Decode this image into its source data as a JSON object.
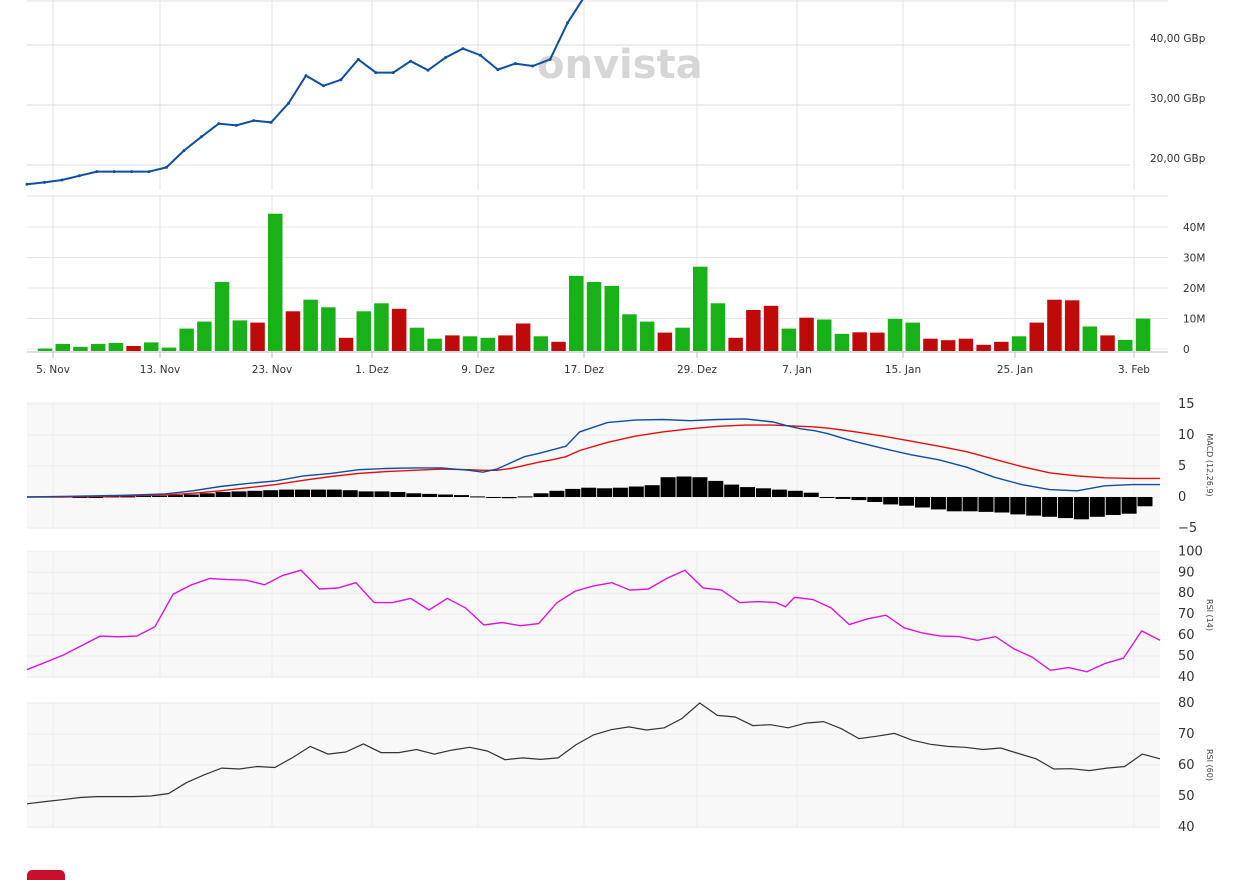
{
  "watermark": "onvista",
  "colors": {
    "price": "#0d4f9e",
    "vol_up": "#18b218",
    "vol_down": "#bf0a0a",
    "macd": "#0d4f9e",
    "signal": "#e20e0e",
    "hist": "#000000",
    "rsi14": "#dd13dd",
    "rsi50": "#333333",
    "grid": "#e3e3e3",
    "panel_bg": "#f8f8f8",
    "footer_badge": "#c8102e"
  },
  "chart_data": [
    {
      "type": "line",
      "name": "price",
      "yticks": [
        "20,00 GBp",
        "30,00 GBp",
        "40,00 GBp"
      ],
      "ylim": [
        16.4,
        46.1
      ],
      "values": [
        16.8,
        17.1,
        17.5,
        18.2,
        18.9,
        18.9,
        18.9,
        18.9,
        19.6,
        22.4,
        24.7,
        26.9,
        26.6,
        27.4,
        27.1,
        30.3,
        34.9,
        33.2,
        34.2,
        37.6,
        35.4,
        35.4,
        37.3,
        35.8,
        37.9,
        39.4,
        38.3,
        35.9,
        36.9,
        36.5,
        37.6,
        43.7,
        48.2
      ]
    },
    {
      "type": "bar",
      "name": "volume",
      "yticks": [
        "0",
        "10M",
        "20M",
        "30M",
        "40M"
      ],
      "ylim": [
        0,
        47
      ],
      "values": [
        0.5,
        2,
        1,
        2,
        2.3,
        1.3,
        2.5,
        0.8,
        7,
        9.3,
        22.3,
        9.7,
        9,
        44.7,
        12.7,
        16.5,
        14,
        4,
        12.7,
        15.3,
        13.5,
        7.3,
        3.7,
        4.8,
        4.5,
        4,
        4.8,
        8.7,
        4.5,
        2.7,
        24.3,
        22.3,
        21,
        11.7,
        9.3,
        5.7,
        7.3,
        27.3,
        15.3,
        4,
        13.1,
        14.5,
        7,
        10.6,
        10,
        5.3,
        5.8,
        5.7,
        10.2,
        9,
        3.7,
        3.2,
        3.7,
        1.7,
        2.7,
        4.5,
        9,
        16.5,
        16.3,
        7.7,
        4.8,
        3.3,
        10.3
      ],
      "up": [
        true,
        true,
        true,
        true,
        true,
        false,
        true,
        true,
        true,
        true,
        true,
        true,
        false,
        true,
        false,
        true,
        true,
        false,
        true,
        true,
        false,
        true,
        true,
        false,
        true,
        true,
        false,
        false,
        true,
        false,
        true,
        true,
        true,
        true,
        true,
        false,
        true,
        true,
        true,
        false,
        false,
        false,
        true,
        false,
        true,
        true,
        false,
        false,
        true,
        true,
        false,
        false,
        false,
        false,
        false,
        true,
        false,
        false,
        false,
        true,
        false,
        true,
        true
      ]
    },
    {
      "type": "line",
      "name": "MACD (12,26,9)",
      "yticks": [
        "−5",
        "0",
        "5",
        "10",
        "15"
      ],
      "ylim": [
        -5,
        15
      ],
      "x_labels": [
        "5. Nov",
        "13. Nov",
        "23. Nov",
        "1. Dez",
        "9. Dez",
        "17. Dez",
        "29. Dez",
        "7. Jan",
        "15. Jan",
        "25. Jan",
        "3. Feb"
      ],
      "macd_x": [
        0,
        5,
        10,
        15,
        20,
        24,
        28,
        32,
        36,
        40,
        44,
        48,
        52,
        56,
        60,
        64,
        66,
        68,
        70,
        72,
        74,
        76,
        78,
        80,
        84,
        88,
        92,
        96,
        100,
        104,
        108,
        110,
        112,
        114,
        116,
        118,
        120,
        124,
        128,
        132,
        136,
        140,
        144,
        148,
        152,
        156,
        160,
        164
      ],
      "macd": [
        0,
        0.1,
        0.2,
        0.3,
        0.5,
        1,
        1.7,
        2.2,
        2.6,
        3.4,
        3.8,
        4.4,
        4.6,
        4.7,
        4.7,
        4.3,
        4,
        4.5,
        5.5,
        6.5,
        7,
        7.6,
        8.2,
        10.5,
        12,
        12.4,
        12.5,
        12.3,
        12.5,
        12.6,
        12.1,
        11.5,
        11,
        10.7,
        10.2,
        9.5,
        8.9,
        7.8,
        6.8,
        6,
        4.8,
        3.2,
        2,
        1.2,
        1,
        1.8,
        2,
        2
      ],
      "signal": [
        0,
        0,
        0.1,
        0.2,
        0.3,
        0.6,
        1,
        1.5,
        2,
        2.7,
        3.3,
        3.8,
        4.1,
        4.3,
        4.5,
        4.4,
        4.3,
        4.3,
        4.6,
        5.1,
        5.6,
        6,
        6.5,
        7.5,
        8.8,
        9.8,
        10.5,
        11,
        11.4,
        11.6,
        11.6,
        11.5,
        11.4,
        11.3,
        11.1,
        10.8,
        10.5,
        9.8,
        9,
        8.2,
        7.3,
        6.1,
        4.9,
        3.9,
        3.4,
        3.1,
        3,
        3
      ],
      "hist": [
        0,
        0,
        0.1,
        0.1,
        0.2,
        0.2,
        0.3,
        0.4,
        0.6,
        0.8,
        0.9,
        1,
        1.1,
        1.2,
        1.2,
        1.2,
        1.2,
        1.1,
        0.9,
        0.9,
        0.8,
        0.6,
        0.5,
        0.4,
        0.3,
        0.1,
        0,
        -0.2,
        0.1,
        0.6,
        1,
        1.3,
        1.5,
        1.4,
        1.5,
        1.7,
        1.9,
        3.2,
        3.3,
        3.2,
        2.6,
        2,
        1.6,
        1.4,
        1.2,
        1,
        0.7,
        0,
        -0.3,
        -0.5,
        -0.8,
        -1.2,
        -1.4,
        -1.7,
        -2,
        -2.3,
        -2.3,
        -2.4,
        -2.5,
        -2.8,
        -3,
        -3.2,
        -3.4,
        -3.6,
        -3.2,
        -2.9,
        -2.7,
        -1.5
      ]
    },
    {
      "type": "line",
      "name": "RSI (14)",
      "yticks": [
        "40",
        "50",
        "60",
        "70",
        "80",
        "90",
        "100"
      ],
      "ylim": [
        40,
        100
      ],
      "values": [
        43.5,
        50.5,
        59.5,
        59.2,
        59.5,
        64,
        79.5,
        84,
        87,
        86.5,
        86.2,
        84,
        88.5,
        91,
        82,
        82.5,
        85,
        75.5,
        75.5,
        77.5,
        72,
        77.5,
        73,
        64.8,
        66,
        64.5,
        65.5,
        75.5,
        81,
        83.5,
        85,
        81.5,
        82,
        87,
        91,
        82.5,
        81.5,
        75.5,
        76,
        75.5,
        73.5,
        78,
        77,
        73,
        65,
        67.8,
        69.5,
        63.5,
        61,
        59.5,
        59.3,
        57.5,
        59.3,
        53.5,
        49.5,
        43.2,
        44.5,
        42.5,
        46.5,
        49,
        62,
        57.5
      ],
      "x": [
        0,
        2,
        4,
        5,
        6,
        7,
        8,
        9,
        10,
        11,
        12,
        13,
        14,
        15,
        16,
        17,
        18,
        19,
        20,
        21,
        22,
        23,
        24,
        25,
        26,
        27,
        28,
        29,
        30,
        31,
        32,
        33,
        34,
        35,
        36,
        37,
        38,
        39,
        40,
        41,
        41.5,
        42,
        43,
        44,
        45,
        46,
        47,
        48,
        49,
        50,
        51,
        52,
        53,
        54,
        55,
        56,
        57,
        58,
        59,
        60,
        61,
        62
      ]
    },
    {
      "type": "line",
      "name": "RSI (60)",
      "yticks": [
        "40",
        "50",
        "60",
        "70",
        "80"
      ],
      "ylim": [
        40,
        80
      ],
      "values": [
        47.5,
        48.2,
        48.8,
        49.5,
        49.8,
        49.8,
        49.8,
        50,
        50.8,
        54.3,
        56.8,
        59,
        58.7,
        59.5,
        59.2,
        62.4,
        66,
        63.5,
        64.2,
        66.8,
        64,
        64,
        65,
        63.5,
        64.8,
        65.7,
        64.5,
        61.7,
        62.3,
        61.8,
        62.3,
        66.5,
        69.7,
        71.4,
        72.3,
        71.3,
        72,
        75,
        80,
        76,
        75.5,
        72.7,
        73,
        72,
        73.5,
        74,
        71.7,
        68.5,
        69.3,
        70.2,
        68,
        66.7,
        66,
        65.7,
        65,
        65.5,
        63.7,
        62,
        58.7,
        58.8,
        58.2,
        59,
        59.5,
        63.5,
        62
      ]
    }
  ]
}
